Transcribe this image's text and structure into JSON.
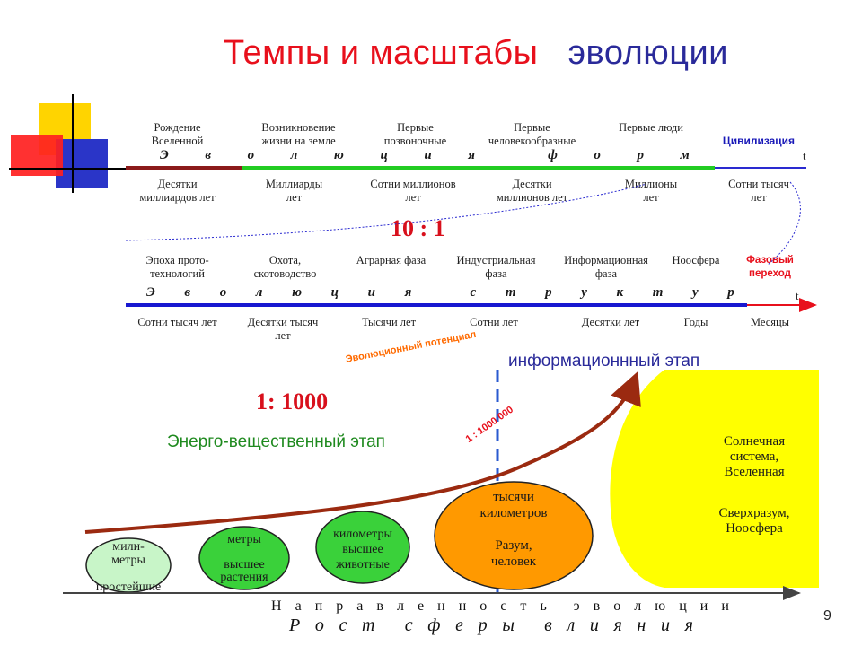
{
  "title": {
    "part1": "Темпы  и  масштабы",
    "part2": "эволюции"
  },
  "top_timeline": {
    "events": [
      "Рождение\nВселенной",
      "Возникновение\nжизни  на  земле",
      "Первые\nпозвоночные",
      "Первые\nчеловекообразные",
      "Первые люди",
      "Цивилизация"
    ],
    "evolution_letters": [
      "Э",
      "в",
      "о",
      "л",
      "ю",
      "ц",
      "и",
      "я",
      "",
      "ф",
      "о",
      "р",
      "м"
    ],
    "t_label": "t",
    "durations": [
      "Десятки\nмиллиардов  лет",
      "Миллиарды\nлет",
      "Сотни миллионов\nлет",
      "Десятки\nмиллионов лет",
      "Миллионы\nлет",
      "Сотни  тысяч\nлет"
    ]
  },
  "ratio_10_1": "10 : 1",
  "bottom_timeline": {
    "phases": [
      "Эпоха прото-\nтехнологий",
      "Охота,\nскотоводство",
      "Аграрная фаза",
      "Индустриальная\nфаза",
      "Информационная\nфаза",
      "Ноосфера",
      "Фазовый\nпереход"
    ],
    "evolution_letters": [
      "Э",
      "в",
      "о",
      "л",
      "ю",
      "ц",
      "и",
      "я",
      "",
      "с",
      "т",
      "р",
      "у",
      "к",
      "т",
      "у",
      "р"
    ],
    "t_label": "t",
    "durations": [
      "Сотни тысяч  лет",
      "Десятки тысяч\nлет",
      "Тысячи  лет",
      "Сотни лет",
      "Десятки лет",
      "Годы",
      "Месяцы"
    ]
  },
  "potential_label": "Эволюционный потенциал",
  "info_stage": "информационнный этап",
  "ratio_1_1000": "1: 1000",
  "energy_stage": "Энерго-вещественный этап",
  "ratio_1_1000000": "1 : 1000 000",
  "circles": [
    {
      "text": "мили-\nметры\n\nпростейшие"
    },
    {
      "text": "метры\n\nвысшее\nрастения"
    },
    {
      "text": "километры\nвысшее\nживотные"
    },
    {
      "text": "тысячи\nкилометров\n\nРазум,\nчеловек"
    }
  ],
  "sun": {
    "text1": "Солнечная\nсистема,\nВселенная",
    "text2": "Сверхразум,\nНоосфера"
  },
  "direction_label": [
    "Н",
    "а",
    "п",
    "р",
    "а",
    "в",
    "л",
    "е",
    "н",
    "н",
    "о",
    "с",
    "т",
    "ь",
    "",
    "э",
    "в",
    "о",
    "л",
    "ю",
    "ц",
    "и",
    "и"
  ],
  "growth_label": [
    "Р",
    "о",
    "с",
    "т",
    "",
    "с",
    "ф",
    "е",
    "р",
    "ы",
    "",
    "в",
    "л",
    "и",
    "я",
    "н",
    "и",
    "я"
  ],
  "page_number": "9",
  "colors": {
    "red": "#e8101c",
    "blue": "#1818d0",
    "green": "#22cc22",
    "yellow": "#ffff00",
    "circle_green": "#3ad13a",
    "brown_arrow": "#9b2a10",
    "orange_circle": "#ff9900"
  },
  "icons": [
    "decorative-squares-logo"
  ]
}
